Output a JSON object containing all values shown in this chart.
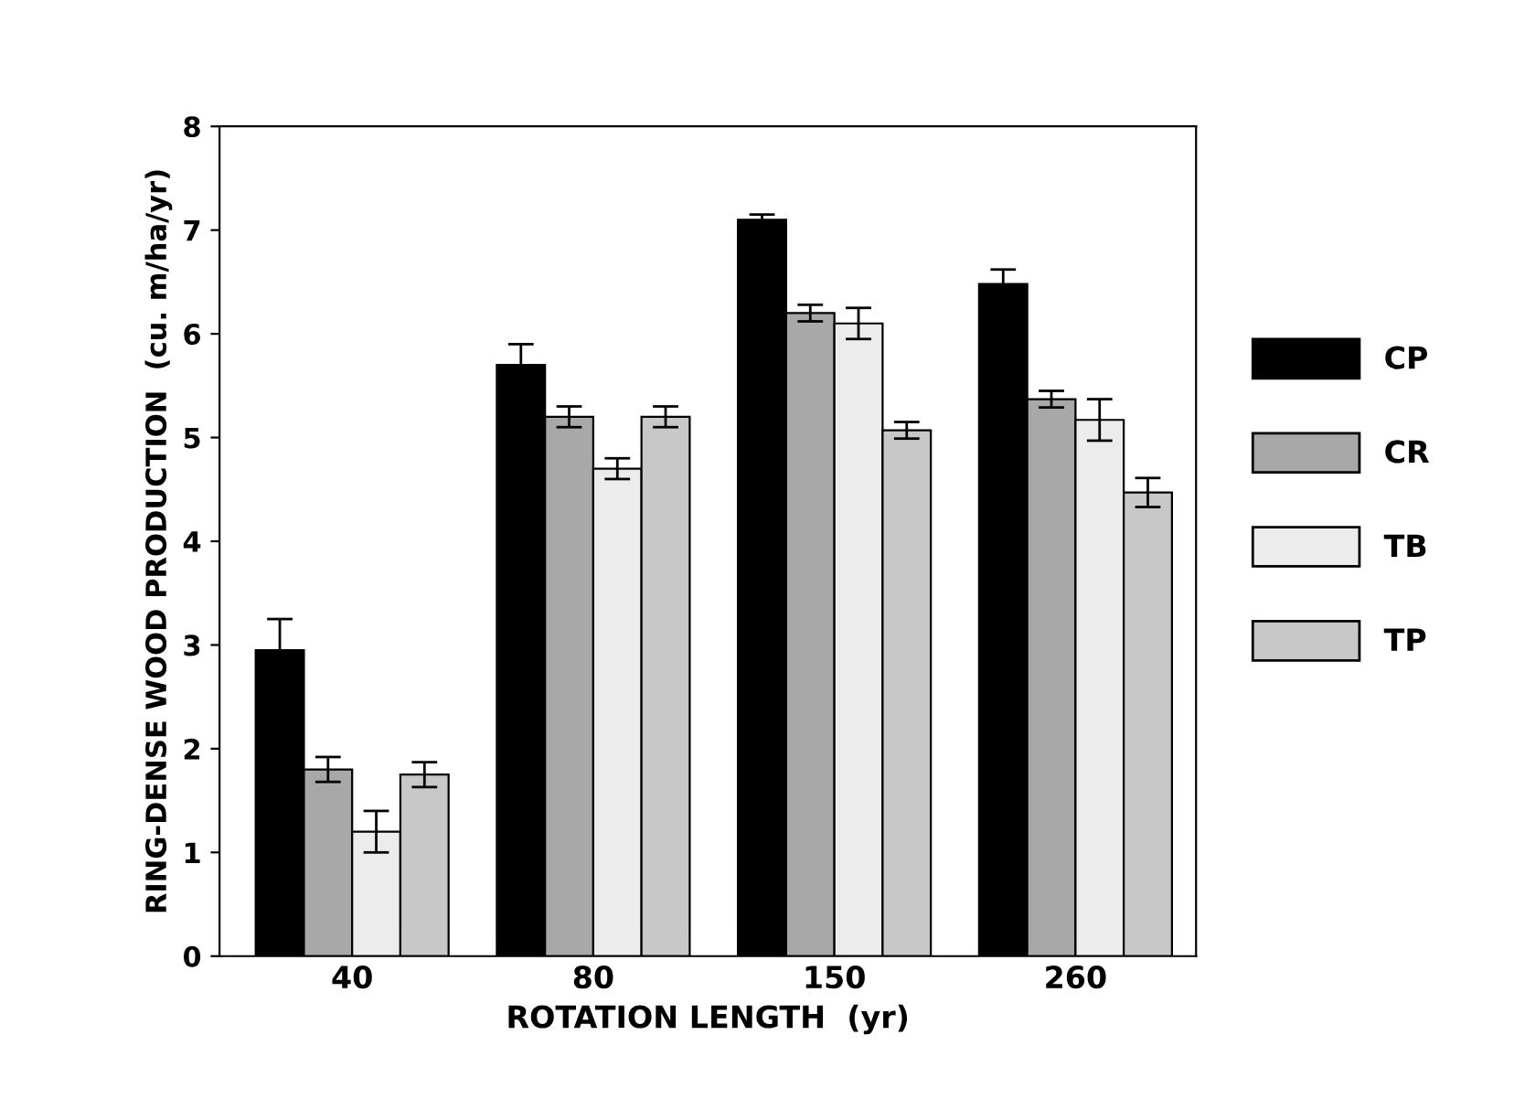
{
  "chart_data": {
    "type": "bar",
    "xlabel": "ROTATION LENGTH  (yr)",
    "ylabel": "RING-DENSE WOOD PRODUCTION  (cu. m/ha/yr)",
    "categories": [
      "40",
      "80",
      "150",
      "260"
    ],
    "series": [
      {
        "name": "CP",
        "color": "#000000",
        "values": [
          2.95,
          5.7,
          7.1,
          6.48
        ],
        "errors": [
          0.3,
          0.2,
          0.05,
          0.14
        ]
      },
      {
        "name": "CR",
        "color": "#a8a8a8",
        "values": [
          1.8,
          5.2,
          6.2,
          5.37
        ],
        "errors": [
          0.12,
          0.1,
          0.08,
          0.08
        ]
      },
      {
        "name": "TB",
        "color": "#ececec",
        "values": [
          1.2,
          4.7,
          6.1,
          5.17
        ],
        "errors": [
          0.2,
          0.1,
          0.15,
          0.2
        ]
      },
      {
        "name": "TP",
        "color": "#c8c8c8",
        "values": [
          1.75,
          5.2,
          5.07,
          4.47
        ],
        "errors": [
          0.12,
          0.1,
          0.08,
          0.14
        ]
      }
    ],
    "ylim": [
      0,
      8
    ],
    "yticks": [
      0,
      1,
      2,
      3,
      4,
      5,
      6,
      7,
      8
    ],
    "grid": false,
    "legend": "right"
  }
}
